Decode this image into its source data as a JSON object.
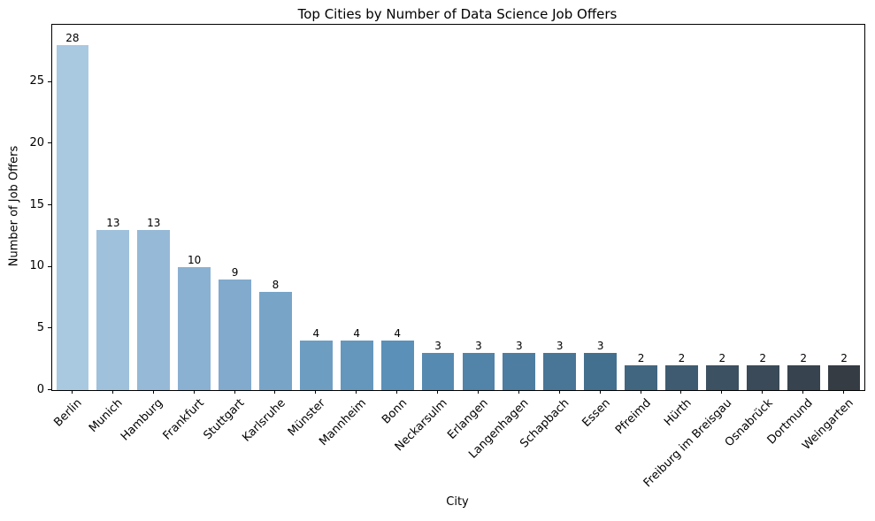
{
  "chart_data": {
    "type": "bar",
    "title": "Top Cities by Number of Data Science Job Offers",
    "xlabel": "City",
    "ylabel": "Number of Job Offers",
    "categories": [
      "Berlin",
      "Munich",
      "Hamburg",
      "Frankfurt",
      "Stuttgart",
      "Karlsruhe",
      "Münster",
      "Mannheim",
      "Bonn",
      "Neckarsulm",
      "Erlangen",
      "Langenhagen",
      "Schapbach",
      "Essen",
      "Pfreimd",
      "Hürth",
      "Freiburg im Breisgau",
      "Osnabrück",
      "Dortmund",
      "Weingarten"
    ],
    "values": [
      28,
      13,
      13,
      10,
      9,
      8,
      4,
      4,
      4,
      3,
      3,
      3,
      3,
      3,
      2,
      2,
      2,
      2,
      2,
      2
    ],
    "bar_labels": [
      "28",
      "13",
      "13",
      "10",
      "9",
      "8",
      "4",
      "4",
      "4",
      "3",
      "3",
      "3",
      "3",
      "3",
      "2",
      "2",
      "2",
      "2",
      "2",
      "2"
    ],
    "bar_colors": [
      "#a9c9e1",
      "#9fc1dc",
      "#95b9d7",
      "#8bb1d2",
      "#82aacd",
      "#78a4c8",
      "#6e9dc2",
      "#6597bd",
      "#5b90b8",
      "#568ab0",
      "#5283a8",
      "#4d7da0",
      "#497697",
      "#44708f",
      "#416680",
      "#3f5b71",
      "#3c5162",
      "#3a4a58",
      "#37434e",
      "#353c44"
    ],
    "yticks": [
      0,
      5,
      10,
      15,
      20,
      25
    ],
    "ylim": [
      0,
      29.65
    ],
    "grid": false,
    "legend_position": "none",
    "axis_color": "#000000",
    "background_color": "#ffffff"
  }
}
